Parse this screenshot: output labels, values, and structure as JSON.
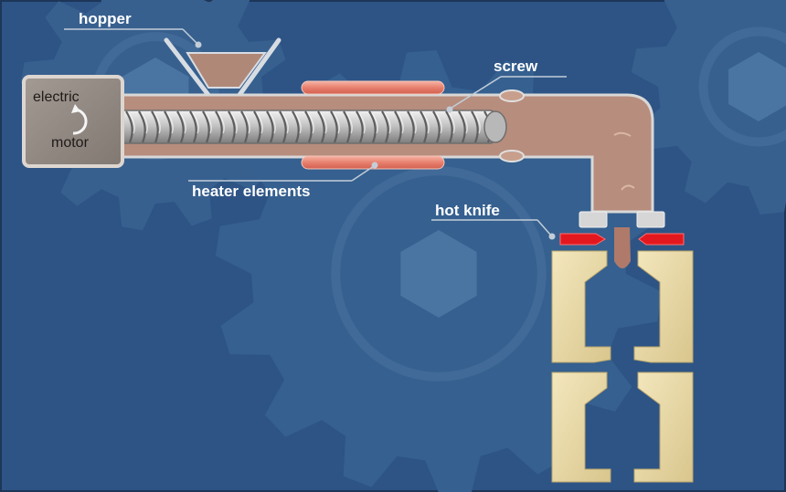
{
  "diagram": {
    "labels": {
      "hopper": "hopper",
      "screw": "screw",
      "heater_elements": "heater elements",
      "hot_knife": "hot knife"
    },
    "motor": {
      "line1": "electric",
      "line2": "motor"
    },
    "colors": {
      "background": "#2d5485",
      "barrel": "#b78d7d",
      "heater": "#e8806f",
      "motor_box": "#8f8680",
      "knife": "#e3181e",
      "mold": "#e7d8a6",
      "label_text": "#ffffff",
      "leader_line": "#c3cdd8"
    }
  }
}
